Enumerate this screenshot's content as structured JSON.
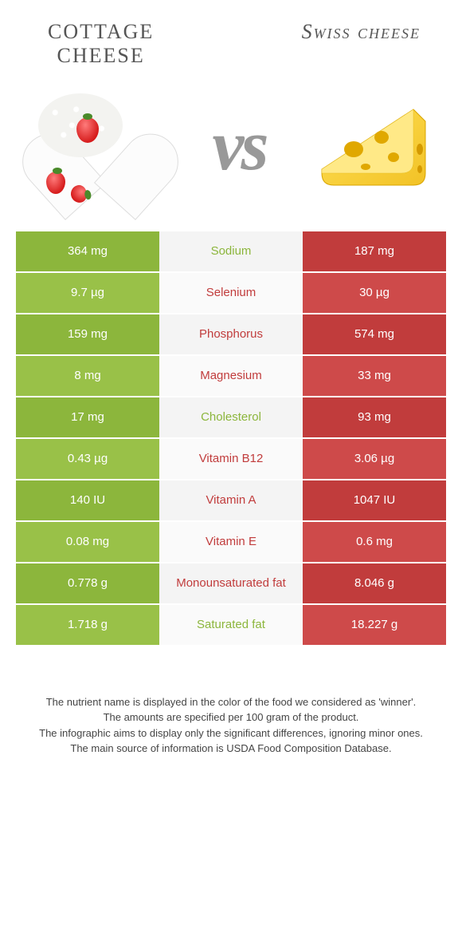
{
  "left": {
    "name": "COTTAGE CHEESE",
    "color": "#8cb63c",
    "row_alt_color": "#99c148"
  },
  "right": {
    "name": "Swiss cheese",
    "color": "#c13c3c",
    "row_alt_color": "#ce4a4a"
  },
  "vs_label": "vs",
  "neutral_bg": "#f4f4f4",
  "neutral_bg_alt": "#fafafa",
  "rows": [
    {
      "nutrient": "Sodium",
      "left": "364 mg",
      "right": "187 mg",
      "winner": "left"
    },
    {
      "nutrient": "Selenium",
      "left": "9.7 µg",
      "right": "30 µg",
      "winner": "right"
    },
    {
      "nutrient": "Phosphorus",
      "left": "159 mg",
      "right": "574 mg",
      "winner": "right"
    },
    {
      "nutrient": "Magnesium",
      "left": "8 mg",
      "right": "33 mg",
      "winner": "right"
    },
    {
      "nutrient": "Cholesterol",
      "left": "17 mg",
      "right": "93 mg",
      "winner": "left"
    },
    {
      "nutrient": "Vitamin B12",
      "left": "0.43 µg",
      "right": "3.06 µg",
      "winner": "right"
    },
    {
      "nutrient": "Vitamin A",
      "left": "140 IU",
      "right": "1047 IU",
      "winner": "right"
    },
    {
      "nutrient": "Vitamin E",
      "left": "0.08 mg",
      "right": "0.6 mg",
      "winner": "right"
    },
    {
      "nutrient": "Monounsaturated fat",
      "left": "0.778 g",
      "right": "8.046 g",
      "winner": "right"
    },
    {
      "nutrient": "Saturated fat",
      "left": "1.718 g",
      "right": "18.227 g",
      "winner": "left"
    }
  ],
  "footnotes": [
    "The nutrient name is displayed in the color of the food we considered as 'winner'.",
    "The amounts are specified per 100 gram of the product.",
    "The infographic aims to display only the significant differences, ignoring minor ones.",
    "The main source of information is USDA Food Composition Database."
  ]
}
